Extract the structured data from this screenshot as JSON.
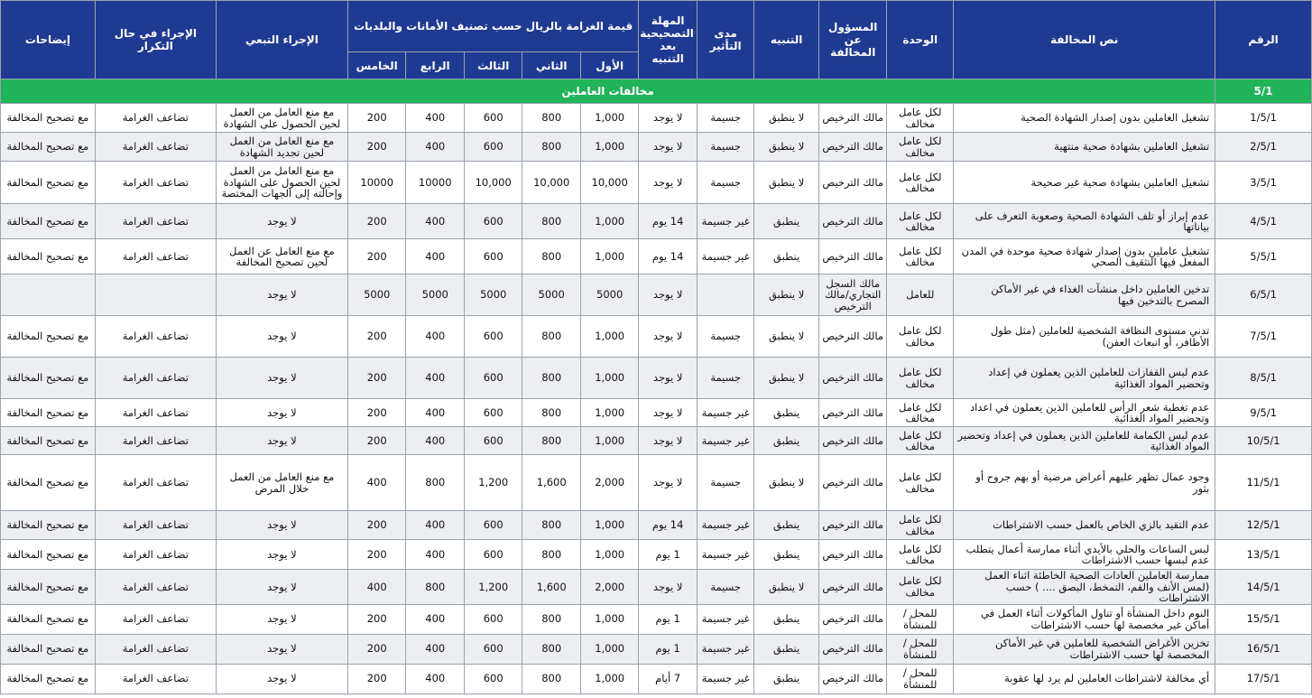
{
  "headers": {
    "number": "الرقم",
    "violation_text": "نص المخالفة",
    "unit": "الوحدة",
    "responsible": "المسؤول عن المخالفة",
    "warning": "التنبيه",
    "impact": "مدى التأثير",
    "correction_period": "المهلة التصحيحية بعد التنبيه",
    "fine_group": "قيمة الغرامة بالريال حسب تصنيف الأمانات والبلديات",
    "fine_1": "الأول",
    "fine_2": "الثاني",
    "fine_3": "الثالث",
    "fine_4": "الرابع",
    "fine_5": "الخامس",
    "followup": "الإجراء التبعي",
    "repeat": "الإجراء في حال التكرار",
    "notes": "إيضاحات"
  },
  "section": {
    "number": "5/1",
    "title": "مخالفات العاملين"
  },
  "rows": [
    {
      "num": "1/5/1",
      "text": "تشغيل العاملين بدون إصدار الشهادة الصحية",
      "unit": "لكل عامل مخالف",
      "resp": "مالك الترخيص",
      "warn": "لا ينطبق",
      "impact": "جسيمة",
      "period": "لا يوجد",
      "f1": "1,000",
      "f2": "800",
      "f3": "600",
      "f4": "400",
      "f5": "200",
      "follow": "مع منع العامل من العمل لحين الحصول على الشهادة",
      "repeat": "تضاعف الغرامة",
      "notes": "مع تصحيح المخالفة"
    },
    {
      "num": "2/5/1",
      "text": "تشغيل العاملين بشهادة صحية منتهية",
      "unit": "لكل عامل مخالف",
      "resp": "مالك الترخيص",
      "warn": "لا ينطبق",
      "impact": "جسيمة",
      "period": "لا يوجد",
      "f1": "1,000",
      "f2": "800",
      "f3": "600",
      "f4": "400",
      "f5": "200",
      "follow": "مع منع العامل من العمل لحين تجديد الشهادة",
      "repeat": "تضاعف الغرامة",
      "notes": "مع تصحيح المخالفة"
    },
    {
      "num": "3/5/1",
      "text": "تشغيل العاملين بشهادة صحية غير صحيحة",
      "unit": "لكل عامل مخالف",
      "resp": "مالك الترخيص",
      "warn": "لا ينطبق",
      "impact": "جسيمة",
      "period": "لا يوجد",
      "f1": "10,000",
      "f2": "10,000",
      "f3": "10,000",
      "f4": "10000",
      "f5": "10000",
      "follow": "مع منع العامل من العمل لحين الحصول على الشهادة وإحالته إلى الجهات المختصة",
      "repeat": "تضاعف الغرامة",
      "notes": "مع تصحيح المخالفة"
    },
    {
      "num": "4/5/1",
      "text": "عدم إبراز أو تلف الشهادة الصحية وصعوبة التعرف على بياناتها",
      "unit": "لكل عامل مخالف",
      "resp": "مالك الترخيص",
      "warn": "ينطبق",
      "impact": "غير جسيمة",
      "period": "14 يوم",
      "f1": "1,000",
      "f2": "800",
      "f3": "600",
      "f4": "400",
      "f5": "200",
      "follow": "لا يوجد",
      "repeat": "تضاعف الغرامة",
      "notes": "مع تصحيح المخالفة"
    },
    {
      "num": "5/5/1",
      "text": "تشغيل عاملين بدون إصدار شهادة صحية موحدة في المدن المفعل فيها التثقيف الصحي",
      "unit": "لكل عامل مخالف",
      "resp": "مالك الترخيص",
      "warn": "ينطبق",
      "impact": "غير جسيمة",
      "period": "14 يوم",
      "f1": "1,000",
      "f2": "800",
      "f3": "600",
      "f4": "400",
      "f5": "200",
      "follow": "مع منع العامل عن العمل لحين تصحيح المخالفة",
      "repeat": "تضاعف الغرامة",
      "notes": "مع تصحيح المخالفة"
    },
    {
      "num": "6/5/1",
      "text": "تدخين العاملين داخل منشآت الغذاء في غير الأماكن المصرح بالتدخين فيها",
      "unit": "للعامل",
      "resp": "مالك السجل التجاري/مالك الترخيص",
      "warn": "لا ينطبق",
      "impact": "",
      "period": "لا يوجد",
      "f1": "5000",
      "f2": "5000",
      "f3": "5000",
      "f4": "5000",
      "f5": "5000",
      "follow": "لا يوجد",
      "repeat": "",
      "notes": ""
    },
    {
      "num": "7/5/1",
      "text": "تدني مستوى النظافة الشخصية للعاملين (مثل طول الأظافر، أو انبعاث العفن)",
      "unit": "لكل عامل مخالف",
      "resp": "مالك الترخيص",
      "warn": "لا ينطبق",
      "impact": "جسيمة",
      "period": "لا يوجد",
      "f1": "1,000",
      "f2": "800",
      "f3": "600",
      "f4": "400",
      "f5": "200",
      "follow": "لا يوجد",
      "repeat": "تضاعف الغرامة",
      "notes": "مع تصحيح المخالفة"
    },
    {
      "num": "8/5/1",
      "text": "عدم لبس القفازات للعاملين الذين يعملون في إعداد وتحضير المواد الغذائية",
      "unit": "لكل عامل مخالف",
      "resp": "مالك الترخيص",
      "warn": "لا ينطبق",
      "impact": "جسيمة",
      "period": "لا يوجد",
      "f1": "1,000",
      "f2": "800",
      "f3": "600",
      "f4": "400",
      "f5": "200",
      "follow": "لا يوجد",
      "repeat": "تضاعف الغرامة",
      "notes": "مع تصحيح المخالفة"
    },
    {
      "num": "9/5/1",
      "text": "عدم تغطية شعر الرأس للعاملين الذين يعملون في اعداد وتحضير المواد الغذائية",
      "unit": "لكل عامل مخالف",
      "resp": "مالك الترخيص",
      "warn": "ينطبق",
      "impact": "غير جسيمة",
      "period": "لا يوجد",
      "f1": "1,000",
      "f2": "800",
      "f3": "600",
      "f4": "400",
      "f5": "200",
      "follow": "لا يوجد",
      "repeat": "تضاعف الغرامة",
      "notes": "مع تصحيح المخالفة"
    },
    {
      "num": "10/5/1",
      "text": "عدم لبس الكمامة للعاملين الذين يعملون في إعداد وتحضير المواد الغذائية",
      "unit": "لكل عامل مخالف",
      "resp": "مالك الترخيص",
      "warn": "ينطبق",
      "impact": "غير جسيمة",
      "period": "لا يوجد",
      "f1": "1,000",
      "f2": "800",
      "f3": "600",
      "f4": "400",
      "f5": "200",
      "follow": "لا يوجد",
      "repeat": "تضاعف الغرامة",
      "notes": "مع تصحيح المخالفة"
    },
    {
      "num": "11/5/1",
      "text": "وجود عمال تظهر عليهم أعراض مرضية أو بهم جروح أو بثور",
      "unit": "لكل عامل مخالف",
      "resp": "مالك الترخيص",
      "warn": "لا ينطبق",
      "impact": "جسيمة",
      "period": "لا يوجد",
      "f1": "2,000",
      "f2": "1,600",
      "f3": "1,200",
      "f4": "800",
      "f5": "400",
      "follow": "مع منع العامل من العمل خلال المرض",
      "repeat": "تضاعف الغرامة",
      "notes": "مع تصحيح المخالفة"
    },
    {
      "num": "12/5/1",
      "text": "عدم التقيد بالزي الخاص بالعمل حسب الاشتراطات",
      "unit": "لكل عامل مخالف",
      "resp": "مالك الترخيص",
      "warn": "ينطبق",
      "impact": "غير جسيمة",
      "period": "14 يوم",
      "f1": "1,000",
      "f2": "800",
      "f3": "600",
      "f4": "400",
      "f5": "200",
      "follow": "لا يوجد",
      "repeat": "تضاعف الغرامة",
      "notes": "مع تصحيح المخالفة"
    },
    {
      "num": "13/5/1",
      "text": "لبس الساعات والحلي بالأيدي أثناء ممارسة أعمال يتطلب عدم لبسها حسب الاشتراطات",
      "unit": "لكل عامل مخالف",
      "resp": "مالك الترخيص",
      "warn": "ينطبق",
      "impact": "غير جسيمة",
      "period": "1 يوم",
      "f1": "1,000",
      "f2": "800",
      "f3": "600",
      "f4": "400",
      "f5": "200",
      "follow": "لا يوجد",
      "repeat": "تضاعف الغرامة",
      "notes": "مع تصحيح المخالفة"
    },
    {
      "num": "14/5/1",
      "text": "ممارسة العاملين العادات الصحية الخاطئة اثناء العمل (لمس الأنف والفم، التمخط، البصق .... ) حسب الاشتراطات",
      "unit": "لكل عامل مخالف",
      "resp": "مالك الترخيص",
      "warn": "لا ينطبق",
      "impact": "جسيمة",
      "period": "لا يوجد",
      "f1": "2,000",
      "f2": "1,600",
      "f3": "1,200",
      "f4": "800",
      "f5": "400",
      "follow": "لا يوجد",
      "repeat": "تضاعف الغرامة",
      "notes": "مع تصحيح المخالفة"
    },
    {
      "num": "15/5/1",
      "text": "النوم داخل المنشأة أو تناول المأكولات أثناء العمل في أماكن غير مخصصة لها حسب الاشتراطات",
      "unit": "للمحل / للمنشأة",
      "resp": "مالك الترخيص",
      "warn": "ينطبق",
      "impact": "غير جسيمة",
      "period": "1 يوم",
      "f1": "1,000",
      "f2": "800",
      "f3": "600",
      "f4": "400",
      "f5": "200",
      "follow": "لا يوجد",
      "repeat": "تضاعف الغرامة",
      "notes": "مع تصحيح المخالفة"
    },
    {
      "num": "16/5/1",
      "text": "تخزين الأغراض الشخصية للعاملين في غير الأماكن المخصصة لها حسب الاشتراطات",
      "unit": "للمحل / للمنشأة",
      "resp": "مالك الترخيص",
      "warn": "ينطبق",
      "impact": "غير جسيمة",
      "period": "1 يوم",
      "f1": "1,000",
      "f2": "800",
      "f3": "600",
      "f4": "400",
      "f5": "200",
      "follow": "لا يوجد",
      "repeat": "تضاعف الغرامة",
      "notes": "مع تصحيح المخالفة"
    },
    {
      "num": "17/5/1",
      "text": "أي مخالفة لاشتراطات العاملين لم يرد لها عقوبة",
      "unit": "للمحل / للمنشأة",
      "resp": "مالك الترخيص",
      "warn": "ينطبق",
      "impact": "غير جسيمة",
      "period": "7 أيام",
      "f1": "1,000",
      "f2": "800",
      "f3": "600",
      "f4": "400",
      "f5": "200",
      "follow": "لا يوجد",
      "repeat": "تضاعف الغرامة",
      "notes": "مع تصحيح المخالفة"
    }
  ]
}
